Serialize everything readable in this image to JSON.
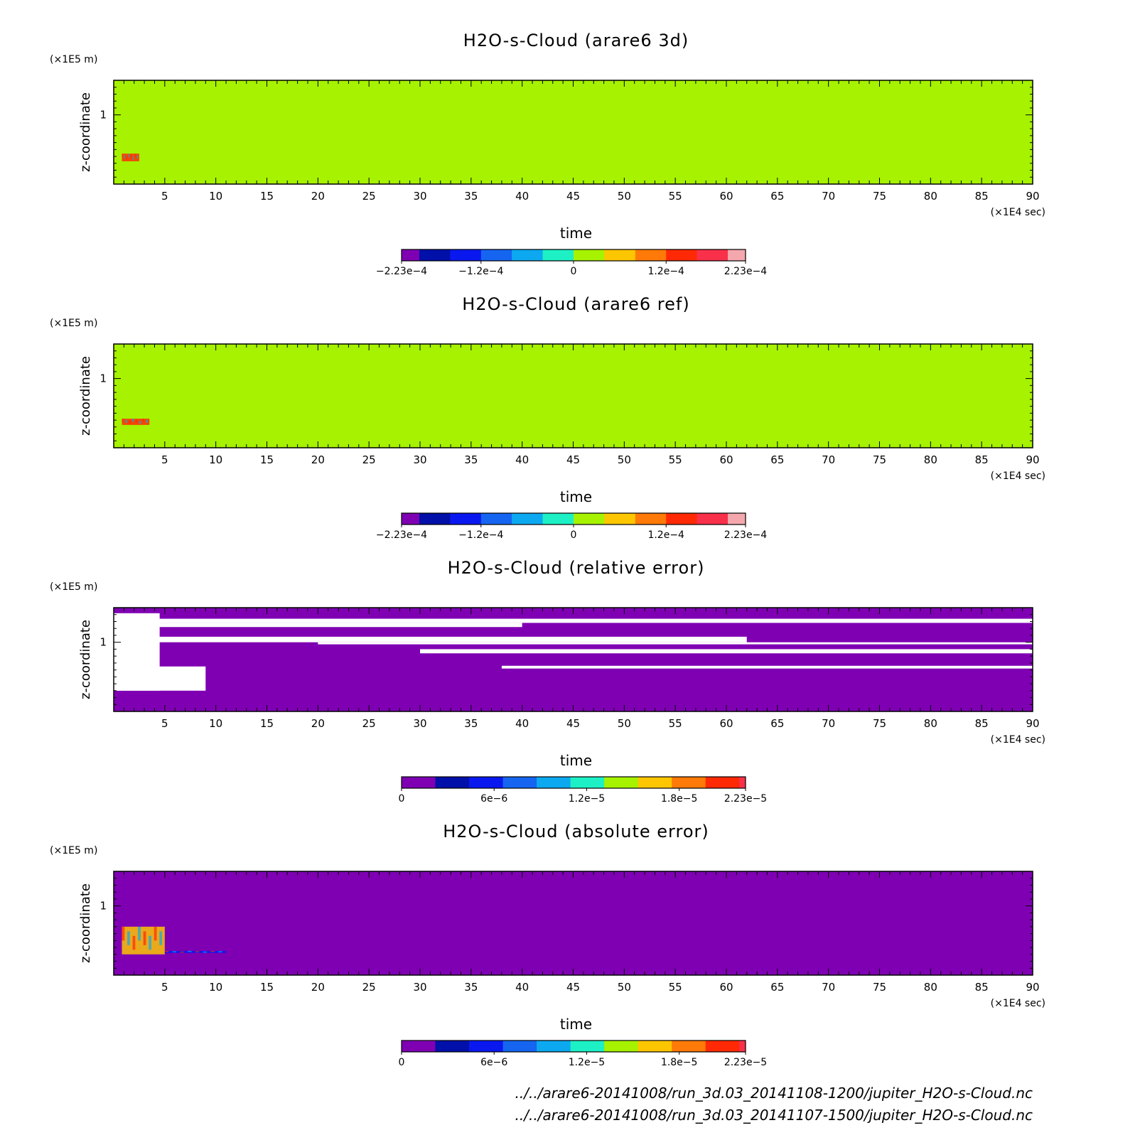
{
  "colors": {
    "palette": [
      "#7f00b3",
      "#0010a8",
      "#0a18f0",
      "#1565f0",
      "#0da9f0",
      "#1df0c4",
      "#a6f200",
      "#fdc600",
      "#ff7a08",
      "#ff2a05",
      "#f8304a",
      "#f4a8ae"
    ],
    "frame": "#000000"
  },
  "footer": {
    "lines": [
      "../../arare6-20141008/run_3d.03_20141108-1200/jupiter_H2O-s-Cloud.nc",
      "../../arare6-20141008/run_3d.03_20141107-1500/jupiter_H2O-s-Cloud.nc"
    ]
  },
  "chart_data": [
    {
      "type": "heatmap",
      "title": "H2O-s-Cloud (arare6 3d)",
      "xlabel": "time",
      "ylabel": "z-coordinate",
      "x_unit": "(×1E4 sec)",
      "y_unit": "(×1E5 m)",
      "xlim": [
        0,
        90
      ],
      "ylim": [
        0,
        1.5
      ],
      "xticks": [
        5,
        10,
        15,
        20,
        25,
        30,
        35,
        40,
        45,
        50,
        55,
        60,
        65,
        70,
        75,
        80,
        85,
        90
      ],
      "yticks": [
        1
      ],
      "background_level": 0,
      "colorbar": {
        "range": [
          -0.000223,
          0.000223
        ],
        "ticks": [
          -0.000223,
          -0.00012,
          0,
          0.00012,
          0.000223
        ],
        "tick_labels": [
          "-2.23e-4",
          "-1.2e-4",
          "0",
          "1.2e-4",
          "2.23e-4"
        ],
        "levels": 12
      },
      "features": [
        {
          "t": [
            0.8,
            2.5
          ],
          "z": [
            0.33,
            0.44
          ],
          "level": 0.00012
        }
      ]
    },
    {
      "type": "heatmap",
      "title": "H2O-s-Cloud (arare6 ref)",
      "xlabel": "time",
      "ylabel": "z-coordinate",
      "x_unit": "(×1E4 sec)",
      "y_unit": "(×1E5 m)",
      "xlim": [
        0,
        90
      ],
      "ylim": [
        0,
        1.5
      ],
      "xticks": [
        5,
        10,
        15,
        20,
        25,
        30,
        35,
        40,
        45,
        50,
        55,
        60,
        65,
        70,
        75,
        80,
        85,
        90
      ],
      "yticks": [
        1
      ],
      "background_level": 0,
      "colorbar": {
        "range": [
          -0.000223,
          0.000223
        ],
        "ticks": [
          -0.000223,
          -0.00012,
          0,
          0.00012,
          0.000223
        ],
        "tick_labels": [
          "-2.23e-4",
          "-1.2e-4",
          "0",
          "1.2e-4",
          "2.23e-4"
        ],
        "levels": 12
      },
      "features": [
        {
          "t": [
            0.8,
            3.5
          ],
          "z": [
            0.33,
            0.42
          ],
          "level": 0.00012
        }
      ]
    },
    {
      "type": "heatmap",
      "title": "H2O-s-Cloud (relative error)",
      "xlabel": "time",
      "ylabel": "z-coordinate",
      "x_unit": "(×1E4 sec)",
      "y_unit": "(×1E5 m)",
      "xlim": [
        0,
        90
      ],
      "ylim": [
        0,
        1.5
      ],
      "xticks": [
        5,
        10,
        15,
        20,
        25,
        30,
        35,
        40,
        45,
        50,
        55,
        60,
        65,
        70,
        75,
        80,
        85,
        90
      ],
      "yticks": [
        1
      ],
      "background_level": 0,
      "colorbar": {
        "range": [
          0,
          2.23e-05
        ],
        "ticks": [
          0,
          6e-06,
          1.2e-05,
          1.8e-05,
          2.23e-05
        ],
        "tick_labels": [
          "0",
          "6e-6",
          "1.2e-5",
          "1.8e-5",
          "2.23e-5"
        ],
        "levels": 11
      },
      "undefined_regions": [
        {
          "t": [
            0,
            4.5
          ],
          "z": [
            0.3,
            1.42
          ]
        },
        {
          "t": [
            0,
            90
          ],
          "z": [
            1.28,
            1.34
          ]
        },
        {
          "t": [
            0,
            40
          ],
          "z": [
            1.22,
            1.28
          ]
        },
        {
          "t": [
            0,
            62
          ],
          "z": [
            1.0,
            1.08
          ]
        },
        {
          "t": [
            20,
            90
          ],
          "z": [
            0.97,
            1.0
          ]
        },
        {
          "t": [
            30,
            90
          ],
          "z": [
            0.84,
            0.9
          ]
        },
        {
          "t": [
            38,
            90
          ],
          "z": [
            0.62,
            0.66
          ]
        },
        {
          "t": [
            0,
            9
          ],
          "z": [
            0.3,
            0.65
          ]
        }
      ]
    },
    {
      "type": "heatmap",
      "title": "H2O-s-Cloud (absolute error)",
      "xlabel": "time",
      "ylabel": "z-coordinate",
      "x_unit": "(×1E4 sec)",
      "y_unit": "(×1E5 m)",
      "xlim": [
        0,
        90
      ],
      "ylim": [
        0,
        1.5
      ],
      "xticks": [
        5,
        10,
        15,
        20,
        25,
        30,
        35,
        40,
        45,
        50,
        55,
        60,
        65,
        70,
        75,
        80,
        85,
        90
      ],
      "yticks": [
        1
      ],
      "background_level": 0,
      "colorbar": {
        "range": [
          0,
          2.23e-05
        ],
        "ticks": [
          0,
          6e-06,
          1.2e-05,
          1.8e-05,
          2.23e-05
        ],
        "tick_labels": [
          "0",
          "6e-6",
          "1.2e-5",
          "1.8e-5",
          "2.23e-5"
        ],
        "levels": 11
      },
      "features": [
        {
          "t": [
            0.8,
            5.0
          ],
          "z": [
            0.3,
            0.7
          ],
          "level": 1.5e-05
        },
        {
          "t": [
            5.0,
            11.0
          ],
          "z": [
            0.32,
            0.35
          ],
          "level": 6e-06
        }
      ]
    }
  ]
}
